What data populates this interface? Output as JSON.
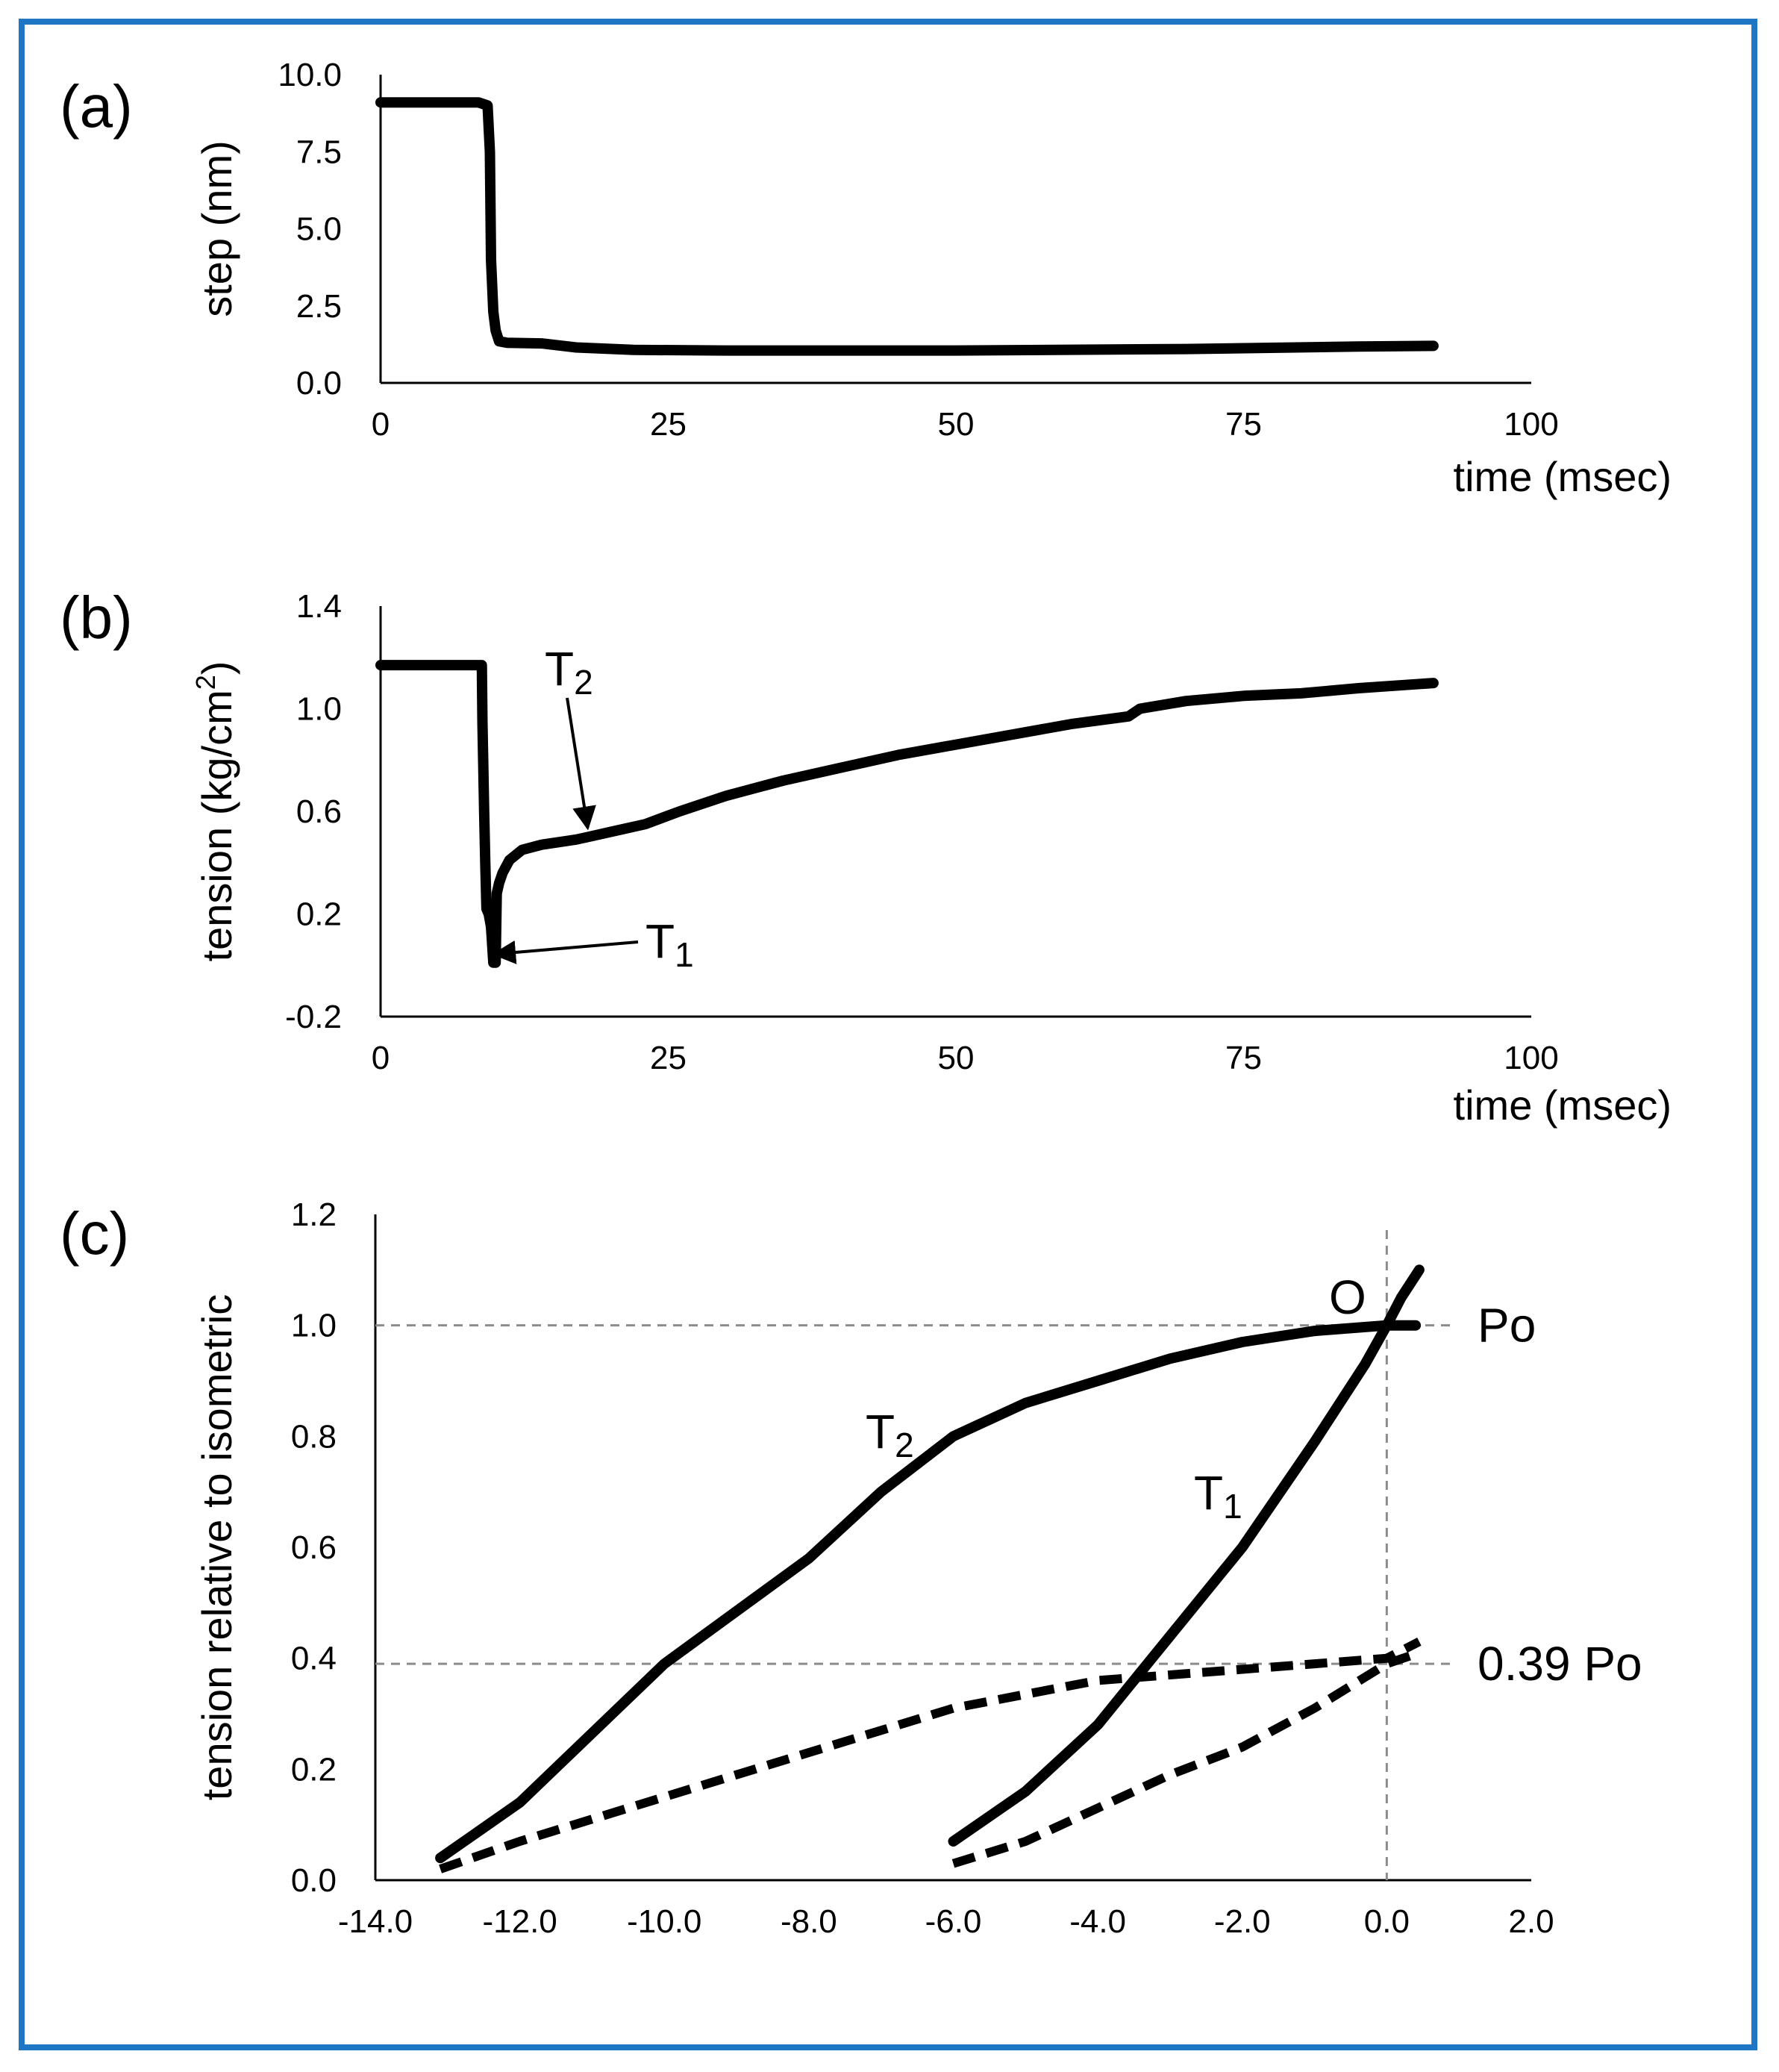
{
  "frame": {
    "border_color": "#1f76c5"
  },
  "chart_data": [
    {
      "panel": "(a)",
      "type": "line",
      "title": "",
      "xlabel": "time (msec)",
      "ylabel": "step (nm)",
      "xlim": [
        0,
        100
      ],
      "ylim": [
        0,
        10
      ],
      "xticks": [
        0,
        25,
        50,
        75,
        100
      ],
      "xtick_labels": [
        "0",
        "25",
        "50",
        "75",
        "100"
      ],
      "yticks": [
        0,
        2.5,
        5,
        7.5,
        10
      ],
      "ytick_labels": [
        "0.0",
        "2.5",
        "5.0",
        "7.5",
        "10.0"
      ],
      "grid": false,
      "series": [
        {
          "name": "step",
          "style": "solid",
          "x": [
            0,
            8.5,
            9.3,
            9.5,
            9.6,
            9.8,
            10.0,
            10.3,
            11,
            14,
            17,
            22,
            30,
            50,
            70,
            85,
            91.5
          ],
          "y": [
            9.1,
            9.1,
            9.0,
            7.5,
            4.0,
            2.3,
            1.7,
            1.35,
            1.3,
            1.28,
            1.15,
            1.07,
            1.05,
            1.05,
            1.1,
            1.18,
            1.2
          ]
        }
      ]
    },
    {
      "panel": "(b)",
      "type": "line",
      "title": "",
      "xlabel": "time (msec)",
      "ylabel": "tension (kg/cm²)",
      "ylabel_base": "tension (kg/cm",
      "ylabel_sup": "2",
      "ylabel_end": ")",
      "xlim": [
        0,
        100
      ],
      "ylim": [
        -0.2,
        1.4
      ],
      "xticks": [
        0,
        25,
        50,
        75,
        100
      ],
      "xtick_labels": [
        "0",
        "25",
        "50",
        "75",
        "100"
      ],
      "yticks": [
        -0.2,
        0.2,
        0.6,
        1.0,
        1.4
      ],
      "ytick_labels": [
        "-0.2",
        "0.2",
        "0.6",
        "1.0",
        "1.4"
      ],
      "grid": false,
      "series": [
        {
          "name": "tension",
          "style": "solid",
          "x": [
            0,
            8.8,
            8.85,
            9.0,
            9.1,
            9.2,
            9.4,
            9.6,
            9.8,
            10.0,
            10.1,
            10.3,
            10.6,
            11.2,
            12.3,
            14,
            17,
            18,
            20,
            23,
            26,
            30,
            35,
            40,
            45,
            50,
            55,
            60,
            65,
            66,
            70,
            75,
            80,
            85,
            91.5
          ],
          "y": [
            1.17,
            1.17,
            0.95,
            0.6,
            0.4,
            0.22,
            0.2,
            0.15,
            0.01,
            0.01,
            0.28,
            0.32,
            0.36,
            0.41,
            0.45,
            0.47,
            0.49,
            0.5,
            0.52,
            0.55,
            0.6,
            0.66,
            0.72,
            0.77,
            0.82,
            0.86,
            0.9,
            0.94,
            0.97,
            1.0,
            1.03,
            1.05,
            1.06,
            1.08,
            1.1
          ]
        }
      ],
      "annotations": [
        {
          "text": "T",
          "subscript": "2",
          "arrow_to": [
            18,
            0.5
          ]
        },
        {
          "text": "T",
          "subscript": "1",
          "arrow_to": [
            11.5,
            0.02
          ]
        }
      ]
    },
    {
      "panel": "(c)",
      "type": "line",
      "title": "",
      "xlabel": "",
      "ylabel": "tension relative to isometric",
      "xlim": [
        -14,
        2
      ],
      "ylim": [
        0,
        1.2
      ],
      "xticks": [
        -14,
        -12,
        -10,
        -8,
        -6,
        -4,
        -2,
        0,
        2
      ],
      "xtick_labels": [
        "-14.0",
        "-12.0",
        "-10.0",
        "-8.0",
        "-6.0",
        "-4.0",
        "-2.0",
        "0.0",
        "2.0"
      ],
      "yticks": [
        0,
        0.2,
        0.4,
        0.6,
        0.8,
        1.0,
        1.2
      ],
      "ytick_labels": [
        "0.0",
        "0.2",
        "0.4",
        "0.6",
        "0.8",
        "1.0",
        "1.2"
      ],
      "grid": false,
      "reference_lines": {
        "horizontal": [
          1.0,
          0.39
        ],
        "vertical": [
          0.0
        ]
      },
      "series": [
        {
          "name": "T2",
          "style": "solid",
          "x": [
            -13.1,
            -12.0,
            -10.0,
            -8.0,
            -7.0,
            -6.0,
            -5.0,
            -4.0,
            -3.0,
            -2.0,
            -1.0,
            0.0,
            0.4
          ],
          "y": [
            0.04,
            0.14,
            0.39,
            0.58,
            0.7,
            0.8,
            0.86,
            0.9,
            0.94,
            0.97,
            0.99,
            1.0,
            1.0
          ]
        },
        {
          "name": "T1",
          "style": "solid",
          "x": [
            -6.0,
            -5.0,
            -4.0,
            -3.0,
            -2.0,
            -1.0,
            -0.3,
            0.0,
            0.2,
            0.45
          ],
          "y": [
            0.07,
            0.16,
            0.28,
            0.44,
            0.6,
            0.79,
            0.93,
            1.0,
            1.05,
            1.1
          ]
        },
        {
          "name": "T2 (0.39 Po)",
          "style": "dashed",
          "x": [
            -13.1,
            -12.0,
            -10.0,
            -8.0,
            -6.0,
            -4.0,
            -3.0,
            -2.0,
            -1.0,
            0.0,
            0.45
          ],
          "y": [
            0.02,
            0.07,
            0.15,
            0.23,
            0.31,
            0.36,
            0.37,
            0.38,
            0.39,
            0.4,
            0.43
          ]
        },
        {
          "name": "T1 (0.39 Po)",
          "style": "dashed",
          "x": [
            -6.0,
            -5.0,
            -4.0,
            -3.0,
            -2.0,
            -1.0,
            0.0,
            0.45
          ],
          "y": [
            0.03,
            0.07,
            0.13,
            0.19,
            0.24,
            0.31,
            0.39,
            0.41
          ]
        }
      ],
      "annotations": [
        {
          "text": "O",
          "at": [
            -0.5,
            1.09
          ]
        },
        {
          "text": "Po",
          "refers_to": 1.0
        },
        {
          "text": "0.39 Po",
          "refers_to": 0.39
        },
        {
          "text": "T",
          "subscript": "2",
          "label_for": "T2"
        },
        {
          "text": "T",
          "subscript": "1",
          "label_for": "T1"
        }
      ]
    }
  ]
}
